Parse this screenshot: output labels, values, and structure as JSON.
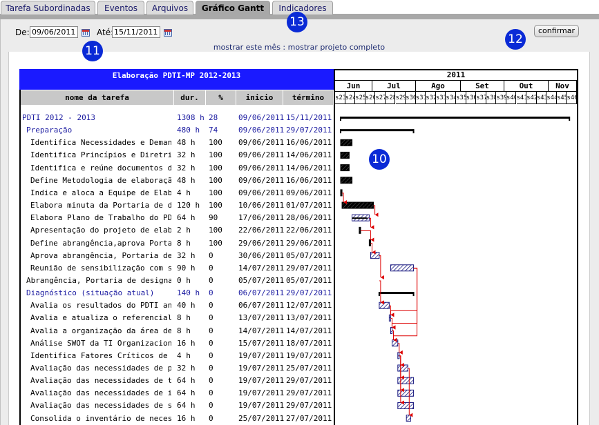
{
  "tabs": [
    {
      "label": "Tarefa Subordinadas",
      "active": false
    },
    {
      "label": "Eventos",
      "active": false
    },
    {
      "label": "Arquivos",
      "active": false
    },
    {
      "label": "Gráfico Gantt",
      "active": true
    },
    {
      "label": "Indicadores",
      "active": false
    }
  ],
  "filter": {
    "de_label": "De:",
    "de_value": "09/06/2011",
    "ate_label": "Até:",
    "ate_value": "15/11/2011",
    "confirm_label": "confirmar",
    "link_month": "mostrar este mês",
    "link_sep": " : ",
    "link_full": "mostrar projeto completo"
  },
  "badges": [
    "10",
    "11",
    "12",
    "13"
  ],
  "gantt": {
    "title": "Elaboração PDTI-MP 2012-2013",
    "headers": {
      "name": "nome da tarefa",
      "dur": "dur.",
      "pct": "%",
      "start": "inicio",
      "end": "término"
    },
    "year": "2011",
    "months": [
      "Jun",
      "Jul",
      "Ago",
      "Set",
      "Out",
      "Nov"
    ],
    "weeks": [
      "s23",
      "s24",
      "s25",
      "s26",
      "s27",
      "s28",
      "s29",
      "s30",
      "s31",
      "s32",
      "s33",
      "s34",
      "s35",
      "s36",
      "s37",
      "s38",
      "s39",
      "s40",
      "s41",
      "s42",
      "s43",
      "s44",
      "s45",
      "s46"
    ],
    "tasks": [
      {
        "name": "PDTI 2012 - 2013",
        "dur": "1308 h",
        "pct": "28",
        "start": "09/06/2011",
        "end": "15/11/2011",
        "level": 0,
        "group": true
      },
      {
        "name": "Preparação",
        "dur": "480 h",
        "pct": "74",
        "start": "09/06/2011",
        "end": "29/07/2011",
        "level": 1,
        "group": true
      },
      {
        "name": "Identifica Necessidades e Demanda.",
        "dur": "48 h",
        "pct": "100",
        "start": "09/06/2011",
        "end": "16/06/2011",
        "level": 2
      },
      {
        "name": "Identifica Princípios e Diretrizes",
        "dur": "32 h",
        "pct": "100",
        "start": "09/06/2011",
        "end": "14/06/2011",
        "level": 2
      },
      {
        "name": "Identifica e reúne documentos de re.",
        "dur": "32 h",
        "pct": "100",
        "start": "09/06/2011",
        "end": "14/06/2011",
        "level": 2
      },
      {
        "name": "Define Metodologia de elaboração .",
        "dur": "48 h",
        "pct": "100",
        "start": "09/06/2011",
        "end": "16/06/2011",
        "level": 2
      },
      {
        "name": "Indica e aloca a Equipe de Elabor.",
        "dur": "4 h",
        "pct": "100",
        "start": "09/06/2011",
        "end": "09/06/2011",
        "level": 2
      },
      {
        "name": "Elabora minuta da  Portaria de de.",
        "dur": "120 h",
        "pct": "100",
        "start": "10/06/2011",
        "end": "01/07/2011",
        "level": 2
      },
      {
        "name": "Elabora Plano de Trabalho do PDTI.",
        "dur": "64 h",
        "pct": "90",
        "start": "17/06/2011",
        "end": "28/06/2011",
        "level": 2
      },
      {
        "name": "Apresentação do projeto de elabor.",
        "dur": "2 h",
        "pct": "100",
        "start": "22/06/2011",
        "end": "22/06/2011",
        "level": 2
      },
      {
        "name": "Define abrangência,aprova Portari.",
        "dur": "8 h",
        "pct": "100",
        "start": "29/06/2011",
        "end": "29/06/2011",
        "level": 2
      },
      {
        "name": "Aprova abrangência, Portaria de d.",
        "dur": "32 h",
        "pct": "0",
        "start": "30/06/2011",
        "end": "05/07/2011",
        "level": 2
      },
      {
        "name": "Reunião de sensibilização com sec.",
        "dur": "90 h",
        "pct": "0",
        "start": "14/07/2011",
        "end": "29/07/2011",
        "level": 2
      },
      {
        "name": "Abrangência, Portaria de designaç.",
        "dur": "0 h",
        "pct": "0",
        "start": "05/07/2011",
        "end": "05/07/2011",
        "level": 1
      },
      {
        "name": "Diagnóstico (situação atual)",
        "dur": "140 h",
        "pct": "0",
        "start": "06/07/2011",
        "end": "29/07/2011",
        "level": 1,
        "group": true
      },
      {
        "name": "Avalia os resultados do PDTI ante.",
        "dur": "40 h",
        "pct": "0",
        "start": "06/07/2011",
        "end": "12/07/2011",
        "level": 2
      },
      {
        "name": "Avalia e atualiza o referencial e.",
        "dur": "8 h",
        "pct": "0",
        "start": "13/07/2011",
        "end": "13/07/2011",
        "level": 2
      },
      {
        "name": "Avalia a organização da área de TI",
        "dur": "8 h",
        "pct": "0",
        "start": "14/07/2011",
        "end": "14/07/2011",
        "level": 2
      },
      {
        "name": "Análise SWOT da TI Organizacional",
        "dur": "16 h",
        "pct": "0",
        "start": "15/07/2011",
        "end": "18/07/2011",
        "level": 2
      },
      {
        "name": "Identifica Fatores Críticos de Su.",
        "dur": "4 h",
        "pct": "0",
        "start": "19/07/2011",
        "end": "19/07/2011",
        "level": 2
      },
      {
        "name": "Avaliação das necessidades de pes.",
        "dur": "32 h",
        "pct": "0",
        "start": "19/07/2011",
        "end": "25/07/2011",
        "level": 2
      },
      {
        "name": "Avaliação das necessidades de ter.",
        "dur": "64 h",
        "pct": "0",
        "start": "19/07/2011",
        "end": "29/07/2011",
        "level": 2
      },
      {
        "name": "Avaliação das necessidades de inf.",
        "dur": "64 h",
        "pct": "0",
        "start": "19/07/2011",
        "end": "29/07/2011",
        "level": 2
      },
      {
        "name": "Avaliação das necessidades de ser.",
        "dur": "64 h",
        "pct": "0",
        "start": "19/07/2011",
        "end": "29/07/2011",
        "level": 2
      },
      {
        "name": "Consolida o inventário de necessi.",
        "dur": "16 h",
        "pct": "0",
        "start": "25/07/2011",
        "end": "27/07/2011",
        "level": 2
      }
    ]
  },
  "colors": {
    "group_text": "#1a1aa0",
    "title_bg": "#1a1aff",
    "arrow": "#dd0000",
    "done_bar": "#000000",
    "todo_bar": "#1a1a80"
  }
}
